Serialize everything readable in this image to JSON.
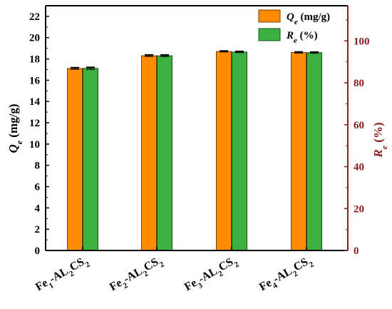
{
  "chart_data": {
    "type": "bar",
    "categories": [
      {
        "base": "Fe",
        "sub1": "1",
        "mid": "-AL",
        "sub2": "2",
        "tail": "CS",
        "sub3": "2"
      },
      {
        "base": "Fe",
        "sub1": "2",
        "mid": "-AL",
        "sub2": "2",
        "tail": "CS",
        "sub3": "2"
      },
      {
        "base": "Fe",
        "sub1": "3",
        "mid": "-AL",
        "sub2": "2",
        "tail": "CS",
        "sub3": "2"
      },
      {
        "base": "Fe",
        "sub1": "4",
        "mid": "-AL",
        "sub2": "2",
        "tail": "CS",
        "sub3": "2"
      }
    ],
    "series": [
      {
        "name_main": "Q",
        "name_sub": "e",
        "name_unit": " (mg/g)",
        "axis": "left",
        "color": "#FF8C00",
        "edge": "#7a3e00",
        "values": [
          17.1,
          18.3,
          18.7,
          18.6
        ],
        "errors": [
          0.08,
          0.08,
          0.05,
          0.06
        ]
      },
      {
        "name_main": "R",
        "name_sub": "e",
        "name_unit": " (%)",
        "axis": "right",
        "color": "#3CB043",
        "edge": "#145214",
        "values": [
          86.9,
          92.9,
          94.7,
          94.4
        ],
        "errors": [
          0.5,
          0.4,
          0.3,
          0.3
        ]
      }
    ],
    "left_axis": {
      "label_main": "Q",
      "label_sub": "e",
      "label_unit": " (mg/g)",
      "min": 0,
      "max": 23,
      "ticks": [
        0,
        2,
        4,
        6,
        8,
        10,
        12,
        14,
        16,
        18,
        20,
        22
      ],
      "color": "#000000"
    },
    "right_axis": {
      "label_main": "R",
      "label_sub": "e",
      "label_unit": " (%)",
      "min": 0,
      "max": 116.8,
      "ticks": [
        0,
        20,
        40,
        60,
        80,
        100
      ],
      "color": "#8B1A1A"
    },
    "legend": "top-right",
    "grid": false
  }
}
